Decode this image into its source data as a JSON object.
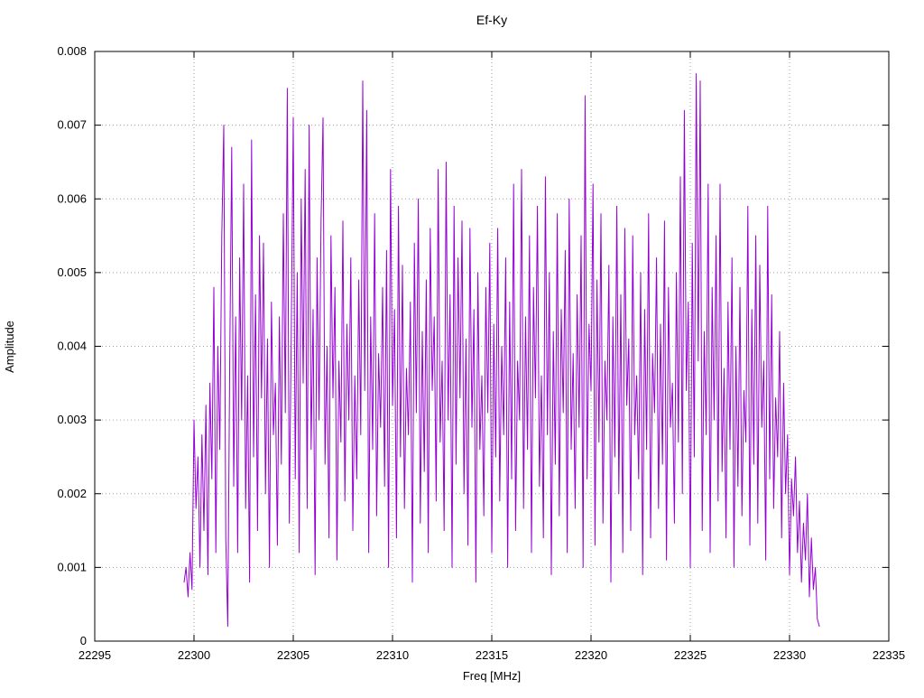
{
  "page": {
    "background": "#ffffff"
  },
  "chart_data": {
    "type": "line",
    "title": "Ef-Ky",
    "xlabel": "Freq [MHz]",
    "ylabel": "Amplitude",
    "xlim": [
      22295,
      22335
    ],
    "ylim": [
      0,
      0.008
    ],
    "x_ticks": [
      22295,
      22300,
      22305,
      22310,
      22315,
      22320,
      22325,
      22330,
      22335
    ],
    "x_tick_labels": [
      "22295",
      "22300",
      "22305",
      "22310",
      "22315",
      "22320",
      "22325",
      "22330",
      "22335"
    ],
    "y_ticks": [
      0,
      0.001,
      0.002,
      0.003,
      0.004,
      0.005,
      0.006,
      0.007,
      0.008
    ],
    "y_tick_labels": [
      "0",
      "0.001",
      "0.002",
      "0.003",
      "0.004",
      "0.005",
      "0.006",
      "0.007",
      "0.008"
    ],
    "grid": true,
    "grid_color": "#a0a0a0",
    "border_color": "#000000",
    "legend": "none",
    "line_color": "#9400d3",
    "series": [
      {
        "name": "Ef-Ky",
        "x_start": 22299.5,
        "x_step": 0.1,
        "y_scale": 0.0001,
        "y_values": [
          8,
          10,
          6,
          12,
          7,
          30,
          18,
          25,
          10,
          28,
          15,
          32,
          9,
          35,
          22,
          48,
          12,
          40,
          26,
          55,
          70,
          14,
          2,
          38,
          67,
          21,
          44,
          12,
          52,
          30,
          62,
          18,
          36,
          8,
          68,
          25,
          47,
          15,
          55,
          33,
          54,
          20,
          41,
          10,
          46,
          28,
          35,
          13,
          44,
          24,
          58,
          31,
          75,
          16,
          42,
          71,
          22,
          50,
          12,
          60,
          35,
          64,
          18,
          70,
          26,
          45,
          9,
          52,
          30,
          57,
          71,
          24,
          40,
          14,
          55,
          33,
          48,
          11,
          38,
          27,
          57,
          19,
          43,
          30,
          52,
          15,
          36,
          22,
          49,
          28,
          76,
          34,
          72,
          12,
          44,
          26,
          58,
          17,
          39,
          29,
          48,
          21,
          53,
          10,
          64,
          32,
          45,
          14,
          59,
          25,
          51,
          18,
          37,
          28,
          46,
          8,
          54,
          31,
          60,
          16,
          42,
          23,
          49,
          12,
          56,
          34,
          44,
          19,
          64,
          27,
          38,
          15,
          65,
          30,
          47,
          10,
          59,
          24,
          52,
          33,
          57,
          20,
          41,
          13,
          56,
          29,
          45,
          8,
          50,
          26,
          36,
          17,
          48,
          31,
          54,
          12,
          43,
          25,
          56,
          19,
          40,
          28,
          52,
          10,
          46,
          22,
          62,
          15,
          38,
          30,
          64,
          18,
          44,
          26,
          55,
          12,
          48,
          33,
          59,
          21,
          36,
          14,
          63,
          28,
          50,
          9,
          42,
          24,
          58,
          17,
          45,
          31,
          53,
          12,
          60,
          26,
          39,
          18,
          47,
          29,
          55,
          10,
          74,
          22,
          43,
          34,
          62,
          13,
          49,
          27,
          58,
          16,
          38,
          30,
          51,
          8,
          44,
          25,
          59,
          20,
          47,
          12,
          56,
          32,
          41,
          15,
          55,
          28,
          36,
          22,
          50,
          9,
          45,
          26,
          58,
          14,
          39,
          31,
          52,
          18,
          43,
          24,
          57,
          11,
          48,
          29,
          35,
          16,
          50,
          27,
          63,
          20,
          72,
          34,
          46,
          10,
          54,
          25,
          77,
          38,
          76,
          15,
          42,
          28,
          62,
          12,
          48,
          30,
          55,
          19,
          62,
          23,
          37,
          14,
          46,
          26,
          52,
          10,
          40,
          21,
          48,
          17,
          34,
          27,
          59,
          13,
          45,
          24,
          55,
          16,
          51,
          29,
          38,
          11,
          59,
          22,
          47,
          18,
          33,
          25,
          42,
          14,
          35,
          20,
          28,
          9,
          22,
          17,
          25,
          12,
          19,
          8,
          16,
          11,
          20,
          6,
          14,
          7,
          10,
          3,
          2
        ]
      }
    ]
  }
}
